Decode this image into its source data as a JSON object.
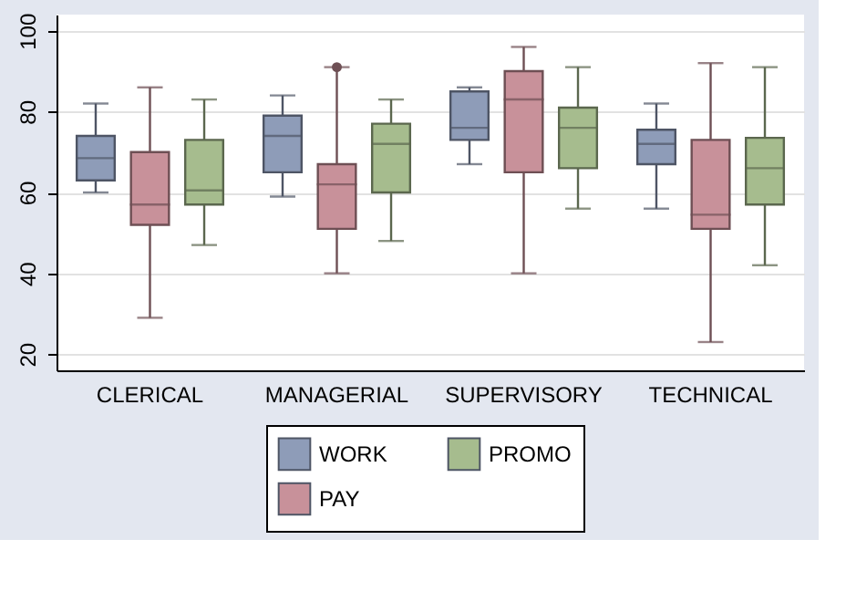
{
  "chart_data": {
    "type": "box",
    "categories": [
      "CLERICAL",
      "MANAGERIAL",
      "SUPERVISORY",
      "TECHNICAL"
    ],
    "series": [
      {
        "name": "WORK",
        "color": "#8e9cb8",
        "boxes": [
          {
            "low": 60,
            "q1": 63,
            "median": 68.5,
            "q3": 74,
            "high": 82
          },
          {
            "low": 59,
            "q1": 65,
            "median": 74,
            "q3": 79,
            "high": 84
          },
          {
            "low": 67,
            "q1": 73,
            "median": 76,
            "q3": 85,
            "high": 86
          },
          {
            "low": 56,
            "q1": 67,
            "median": 72,
            "q3": 75.5,
            "high": 82
          }
        ]
      },
      {
        "name": "PAY",
        "color": "#c8919a",
        "boxes": [
          {
            "low": 29,
            "q1": 52,
            "median": 57,
            "q3": 70,
            "high": 86
          },
          {
            "low": 40,
            "q1": 51,
            "median": 62,
            "q3": 67,
            "high": 91,
            "outliers": [
              91
            ]
          },
          {
            "low": 40,
            "q1": 65,
            "median": 83,
            "q3": 90,
            "high": 96
          },
          {
            "low": 23,
            "q1": 51,
            "median": 54.5,
            "q3": 73,
            "high": 92
          }
        ]
      },
      {
        "name": "PROMO",
        "color": "#a6bc8e",
        "boxes": [
          {
            "low": 47,
            "q1": 57,
            "median": 60.5,
            "q3": 73,
            "high": 83
          },
          {
            "low": 48,
            "q1": 60,
            "median": 72,
            "q3": 77,
            "high": 83
          },
          {
            "low": 56,
            "q1": 66,
            "median": 76,
            "q3": 81,
            "high": 91
          },
          {
            "low": 42,
            "q1": 57,
            "median": 66,
            "q3": 73.5,
            "high": 91
          }
        ]
      }
    ],
    "ylim": [
      16,
      104
    ],
    "yticks": [
      20,
      40,
      60,
      80,
      100
    ],
    "grid": "y",
    "legend": "bottom"
  }
}
